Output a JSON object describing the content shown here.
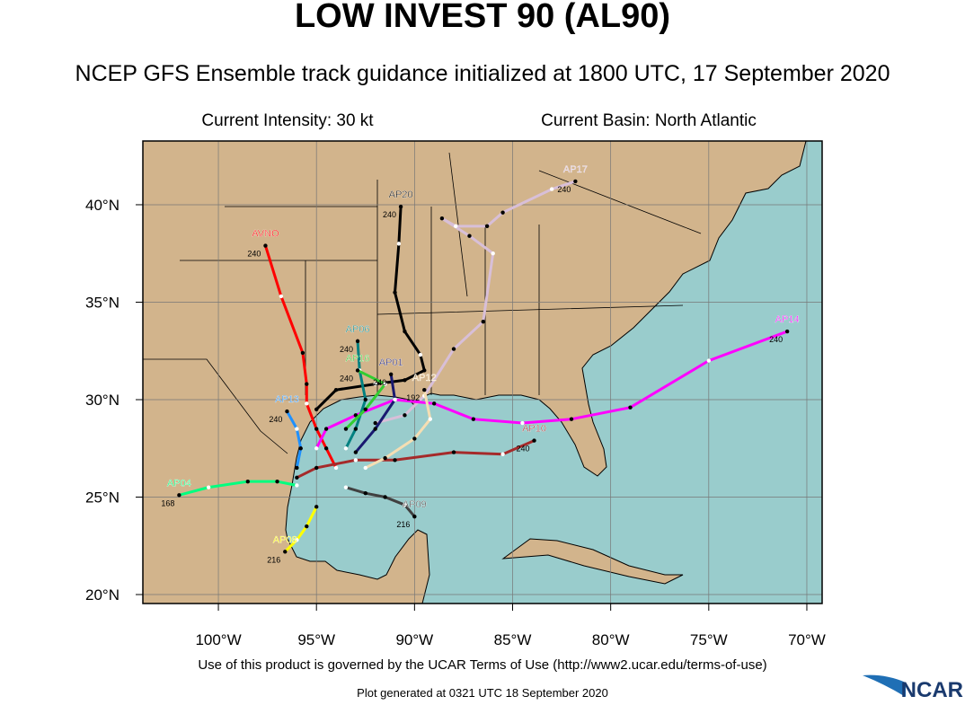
{
  "header": {
    "title": "LOW INVEST 90 (AL90)",
    "subtitle": "NCEP GFS Ensemble track guidance initialized at 1800 UTC, 17 September 2020",
    "intensity": "Current Intensity: 30 kt",
    "basin": "Current Basin: North Atlantic"
  },
  "map": {
    "lon_range": [
      -103.85,
      -69.22
    ],
    "lat_range": [
      19.54,
      43.27
    ],
    "lon_ticks": [
      {
        "value": -100,
        "label": "100°W"
      },
      {
        "value": -95,
        "label": "95°W"
      },
      {
        "value": -90,
        "label": "90°W"
      },
      {
        "value": -85,
        "label": "85°W"
      },
      {
        "value": -80,
        "label": "80°W"
      },
      {
        "value": -75,
        "label": "75°W"
      },
      {
        "value": -70,
        "label": "70°W"
      }
    ],
    "lat_ticks": [
      {
        "value": 20,
        "label": "20°N"
      },
      {
        "value": 25,
        "label": "25°N"
      },
      {
        "value": 30,
        "label": "30°N"
      },
      {
        "value": 35,
        "label": "35°N"
      },
      {
        "value": 40,
        "label": "40°N"
      }
    ]
  },
  "tracks": [
    {
      "name": "AVNO",
      "color": "#ff0000",
      "end_label": "240",
      "lon": [
        -97.6,
        -96.8,
        -95.7,
        -95.5,
        -95.5,
        -95.0,
        -94.5,
        -94.0
      ],
      "lat": [
        37.9,
        35.3,
        32.4,
        30.8,
        29.8,
        28.5,
        27.5,
        26.5
      ]
    },
    {
      "name": "AP20",
      "color": "#000000",
      "end_label": "240",
      "lon": [
        -90.7,
        -90.8,
        -91.0,
        -90.5,
        -89.7,
        -89.5,
        -90.5,
        -92.0,
        -94.0,
        -95.0
      ],
      "lat": [
        39.9,
        38.0,
        35.5,
        33.5,
        32.3,
        31.5,
        31.0,
        30.8,
        30.5,
        29.5
      ]
    },
    {
      "name": "AP17",
      "color": "#d8bfd8",
      "end_label": "240",
      "lon": [
        -81.8,
        -83.0,
        -85.5,
        -86.3,
        -87.9,
        -88.6,
        -87.2,
        -86.0,
        -86.5,
        -88.0,
        -89.5,
        -90.5,
        -92.0
      ],
      "lat": [
        41.2,
        40.8,
        39.6,
        38.9,
        38.9,
        39.3,
        38.4,
        37.5,
        34.0,
        32.6,
        30.2,
        29.2,
        28.8
      ]
    },
    {
      "name": "AP14",
      "color": "#ff00ff",
      "end_label": "240",
      "lon": [
        -71.0,
        -75.0,
        -79.0,
        -82.0,
        -84.5,
        -87.0,
        -89.0,
        -91.0,
        -93.0,
        -94.5,
        -95.0
      ],
      "lat": [
        33.5,
        32.0,
        29.6,
        29.0,
        28.8,
        29.0,
        29.8,
        30.0,
        29.2,
        28.5,
        27.5
      ]
    },
    {
      "name": "AP10",
      "color": "#a52a2a",
      "end_label": "240",
      "lon": [
        -83.9,
        -85.5,
        -88.0,
        -91.0,
        -93.0,
        -95.0,
        -96.0
      ],
      "lat": [
        27.9,
        27.2,
        27.3,
        26.9,
        26.9,
        26.5,
        26.0
      ]
    },
    {
      "name": "AP04",
      "color": "#00ff7f",
      "end_label": "168",
      "lon": [
        -102.0,
        -100.5,
        -98.5,
        -97.0,
        -96.0
      ],
      "lat": [
        25.1,
        25.5,
        25.8,
        25.8,
        25.6
      ]
    },
    {
      "name": "AP09",
      "color": "#404040",
      "end_label": "216",
      "lon": [
        -90.0,
        -90.5,
        -91.5,
        -92.5,
        -93.5
      ],
      "lat": [
        24.0,
        24.6,
        25.0,
        25.2,
        25.5
      ]
    },
    {
      "name": "AP06",
      "color": "#008080",
      "end_label": "240",
      "lon": [
        -92.9,
        -92.8,
        -92.5,
        -93.0,
        -93.5
      ],
      "lat": [
        33.0,
        31.5,
        30.0,
        28.5,
        27.5
      ]
    },
    {
      "name": "AP16",
      "color": "#32cd32",
      "end_label": "240",
      "lon": [
        -92.9,
        -91.5,
        -92.5,
        -93.5
      ],
      "lat": [
        31.5,
        30.8,
        29.5,
        28.5
      ]
    },
    {
      "name": "AP01",
      "color": "#191970",
      "end_label": "240",
      "lon": [
        -91.2,
        -91.0,
        -92.0,
        -93.0
      ],
      "lat": [
        31.3,
        30.0,
        28.5,
        27.3
      ]
    },
    {
      "name": "AP13",
      "color": "#1e90ff",
      "end_label": "240",
      "lon": [
        -96.5,
        -96.0,
        -95.8,
        -96.0
      ],
      "lat": [
        29.4,
        28.5,
        27.5,
        26.5
      ]
    },
    {
      "name": "AP12",
      "color": "#f5deb3",
      "end_label": "192",
      "lon": [
        -89.5,
        -89.2,
        -90.0,
        -91.5,
        -92.5
      ],
      "lat": [
        30.5,
        29.0,
        28.0,
        27.0,
        26.5
      ]
    },
    {
      "name": "AP08",
      "color": "#ffff00",
      "end_label": "216",
      "lon": [
        -96.6,
        -96.0,
        -95.5,
        -95.0
      ],
      "lat": [
        22.2,
        22.8,
        23.5,
        24.5
      ]
    }
  ],
  "footer": {
    "terms": "Use of this product is governed by the UCAR Terms of Use (http://www2.ucar.edu/terms-of-use)",
    "generated": "Plot generated at 0321 UTC   18 September 2020",
    "logo": "NCAR"
  }
}
